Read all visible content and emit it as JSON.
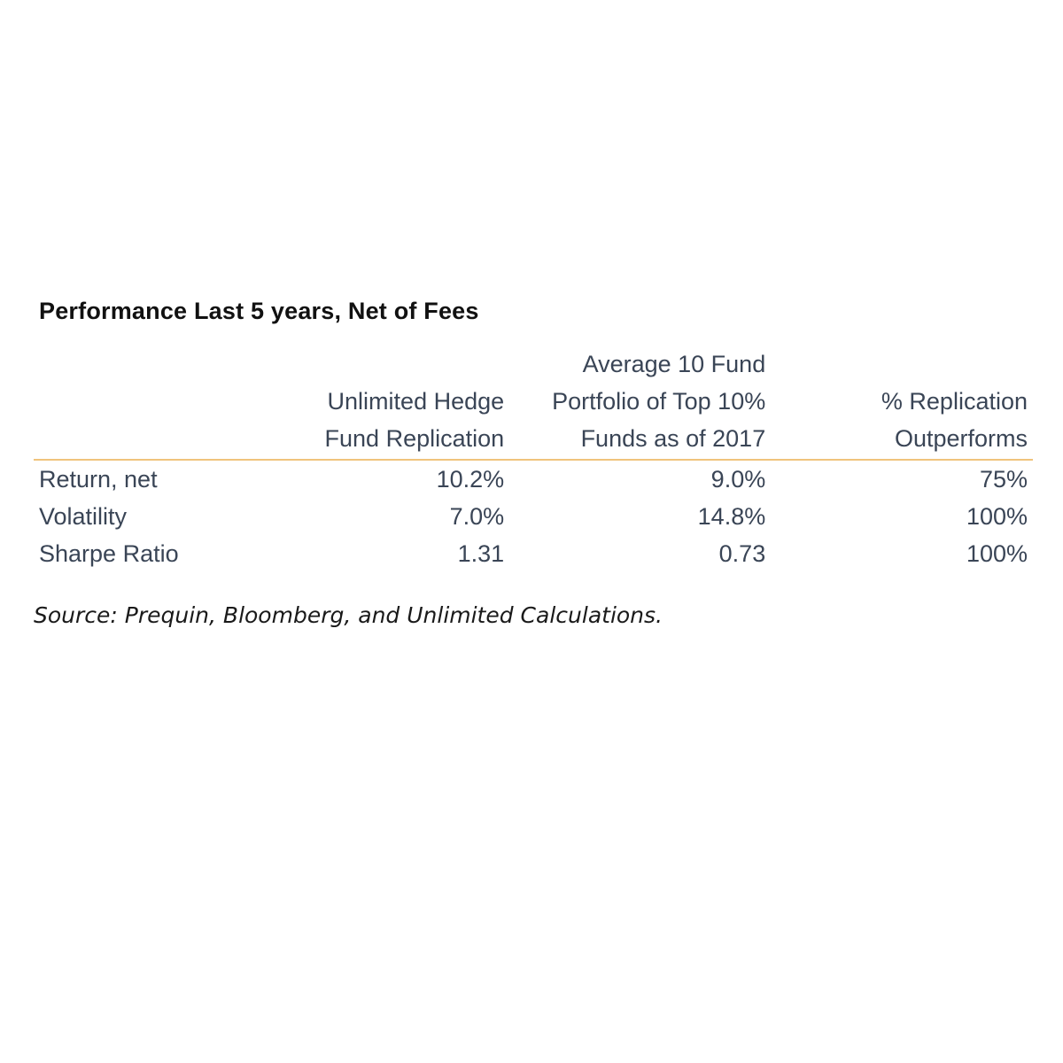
{
  "title": "Performance Last 5 years, Net of Fees",
  "table": {
    "columns": [
      {
        "lines": [
          "Unlimited Hedge",
          "Fund Replication"
        ]
      },
      {
        "lines": [
          "Average 10 Fund",
          "Portfolio of Top 10%",
          "Funds as of 2017"
        ]
      },
      {
        "lines": [
          "% Replication",
          "Outperforms"
        ]
      }
    ],
    "rows": [
      {
        "label": "Return, net",
        "values": [
          "10.2%",
          "9.0%",
          "75%"
        ]
      },
      {
        "label": "Volatility",
        "values": [
          "7.0%",
          "14.8%",
          "100%"
        ]
      },
      {
        "label": "Sharpe Ratio",
        "values": [
          "1.31",
          "0.73",
          "100%"
        ]
      }
    ],
    "rule_color": "#f0c47c"
  },
  "source": "Source: Prequin, Bloomberg, and Unlimited Calculations."
}
